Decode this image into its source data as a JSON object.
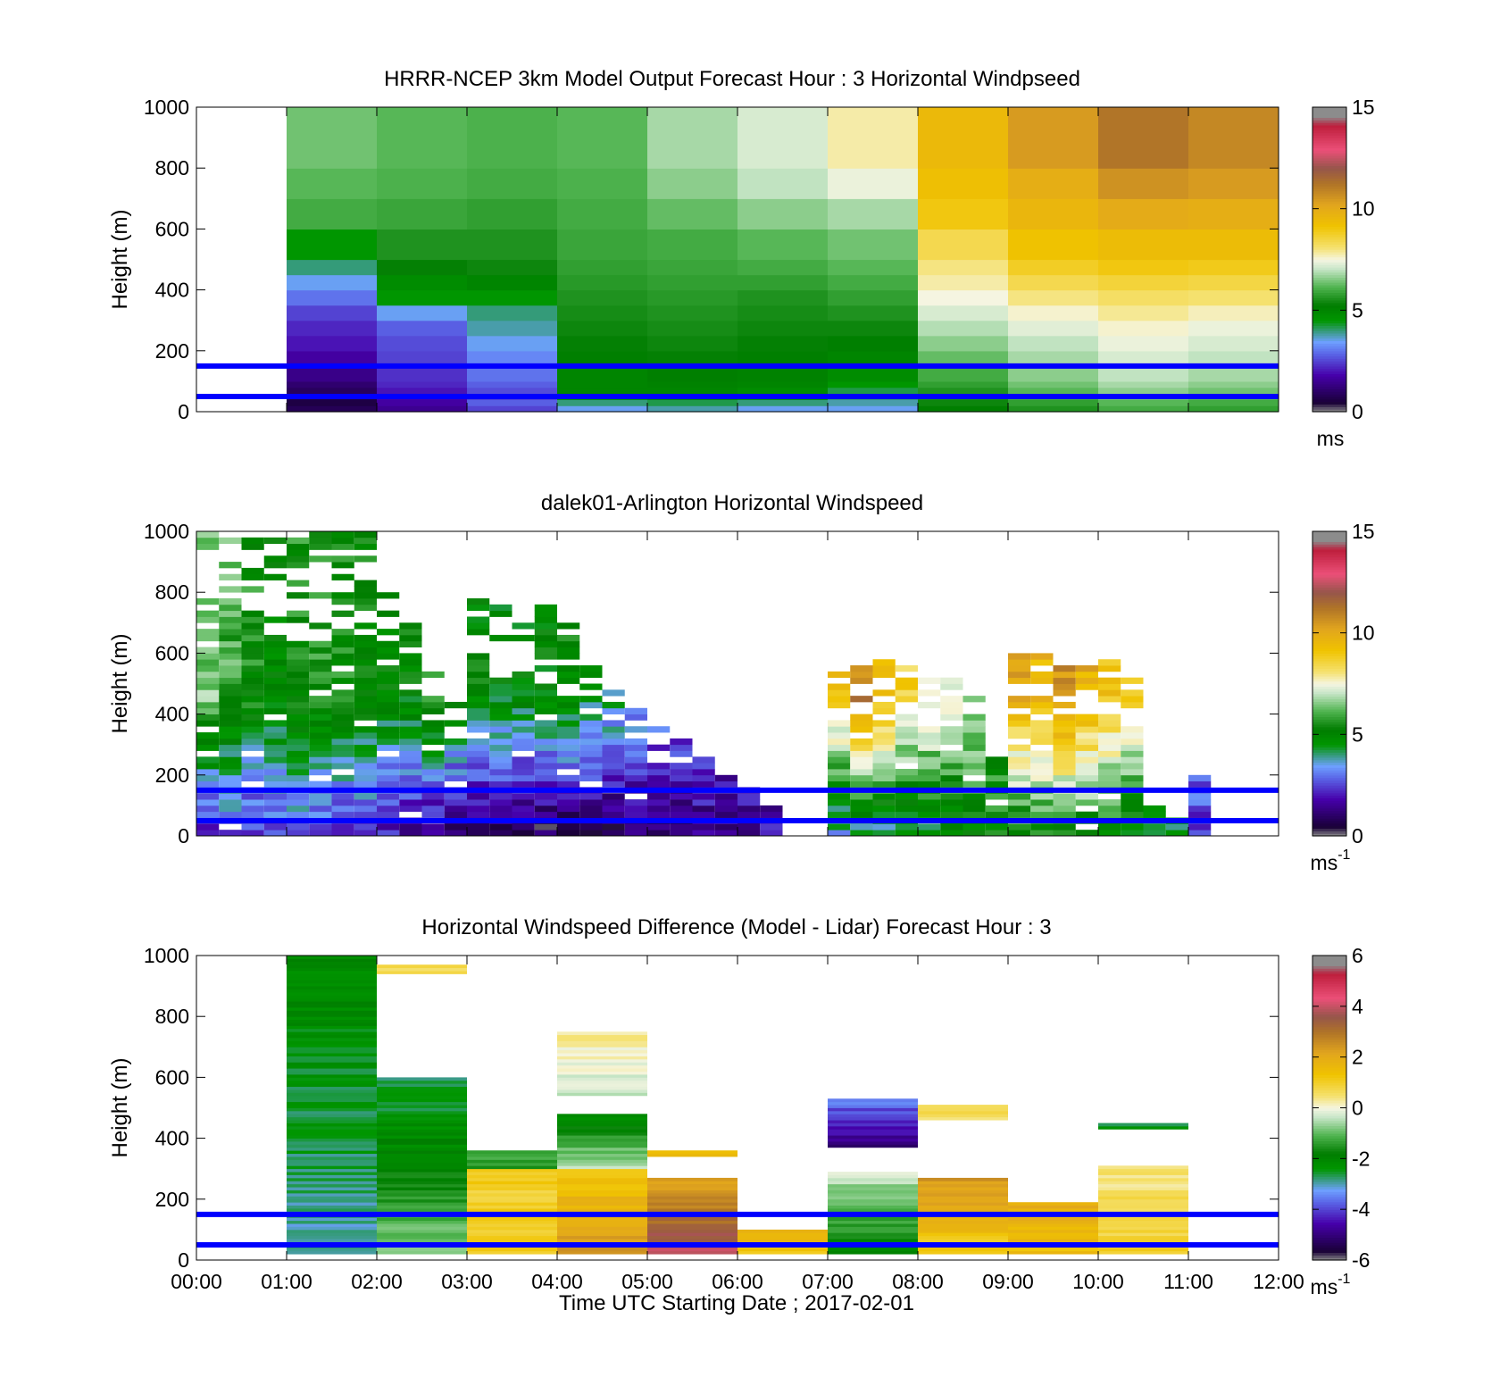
{
  "figure": {
    "xlabel": "Time UTC  Starting Date ; 2017-02-01",
    "x_tick_labels": [
      "00:00",
      "01:00",
      "02:00",
      "03:00",
      "04:00",
      "05:00",
      "06:00",
      "07:00",
      "08:00",
      "09:00",
      "10:00",
      "11:00",
      "12:00"
    ],
    "reference_line_color": "#0000ff",
    "reference_line_heights_m": [
      50,
      150
    ]
  },
  "chart_data": [
    {
      "type": "heatmap",
      "title": "HRRR-NCEP 3km Model Output   Forecast Hour : 3 Horizontal Windpseed",
      "ylabel": "Height (m)",
      "ylim": [
        0,
        1000
      ],
      "y_ticks": [
        0,
        200,
        400,
        600,
        800,
        1000
      ],
      "x_hours": [
        0,
        12
      ],
      "colorbar": {
        "range": [
          0,
          15
        ],
        "ticks": [
          0,
          5,
          10,
          15
        ],
        "unit": "ms"
      },
      "levels_m": [
        0,
        20,
        40,
        60,
        80,
        100,
        150,
        200,
        250,
        300,
        350,
        400,
        450,
        500,
        600,
        700,
        800,
        1000
      ],
      "columns": [
        {
          "start": 0,
          "end": 1,
          "values": [
            null,
            null,
            null,
            null,
            null,
            null,
            null,
            null,
            null,
            null,
            null,
            null,
            null,
            null,
            null,
            null,
            null
          ]
        },
        {
          "start": 1,
          "end": 2,
          "values": [
            0.8,
            0.6,
            0.7,
            0.9,
            1.1,
            1.4,
            1.7,
            2.0,
            2.2,
            2.5,
            3.0,
            3.5,
            4.0,
            4.5,
            6.0,
            6.2,
            6.4
          ]
        },
        {
          "start": 2,
          "end": 3,
          "values": [
            1.5,
            1.7,
            1.8,
            2.0,
            2.2,
            2.3,
            2.5,
            2.6,
            2.8,
            3.5,
            4.5,
            4.8,
            5.3,
            5.6,
            5.9,
            6.1,
            6.2
          ]
        },
        {
          "start": 3,
          "end": 4,
          "values": [
            2.5,
            2.8,
            2.5,
            2.6,
            2.8,
            3.0,
            3.2,
            3.5,
            3.8,
            4.0,
            4.5,
            5.0,
            5.4,
            5.6,
            5.8,
            6.0,
            6.1
          ]
        },
        {
          "start": 4,
          "end": 5,
          "values": [
            3.5,
            4.0,
            4.5,
            5.0,
            5.0,
            5.0,
            5.2,
            5.3,
            5.4,
            5.5,
            5.6,
            5.7,
            5.8,
            5.9,
            6.0,
            6.1,
            6.2
          ]
        },
        {
          "start": 5,
          "end": 6,
          "values": [
            3.8,
            4.2,
            5.0,
            5.0,
            5.1,
            5.2,
            5.3,
            5.4,
            5.5,
            5.6,
            5.7,
            5.8,
            5.9,
            6.0,
            6.3,
            6.6,
            6.8
          ]
        },
        {
          "start": 6,
          "end": 7,
          "values": [
            3.5,
            4.0,
            4.5,
            4.8,
            5.0,
            5.1,
            5.2,
            5.3,
            5.4,
            5.5,
            5.6,
            5.8,
            6.0,
            6.2,
            6.6,
            7.0,
            7.2
          ]
        },
        {
          "start": 7,
          "end": 8,
          "values": [
            3.5,
            3.8,
            4.0,
            4.2,
            4.5,
            4.8,
            5.0,
            5.2,
            5.4,
            5.6,
            5.8,
            6.0,
            6.2,
            6.4,
            6.8,
            7.4,
            7.8
          ]
        },
        {
          "start": 8,
          "end": 9,
          "values": [
            5.2,
            5.4,
            5.5,
            5.6,
            5.8,
            6.0,
            6.3,
            6.6,
            6.9,
            7.2,
            7.5,
            7.8,
            8.0,
            8.4,
            9.0,
            9.3,
            9.5
          ]
        },
        {
          "start": 9,
          "end": 10,
          "values": [
            5.6,
            5.8,
            6.0,
            6.2,
            6.4,
            6.6,
            6.8,
            7.0,
            7.3,
            7.6,
            8.0,
            8.4,
            8.8,
            9.2,
            9.6,
            9.9,
            10.4
          ]
        },
        {
          "start": 10,
          "end": 11,
          "values": [
            6.0,
            6.2,
            6.4,
            6.6,
            6.8,
            7.0,
            7.2,
            7.4,
            7.6,
            7.9,
            8.2,
            8.6,
            9.0,
            9.4,
            10.0,
            10.6,
            11.2
          ]
        },
        {
          "start": 11,
          "end": 12,
          "values": [
            5.8,
            6.0,
            6.2,
            6.4,
            6.6,
            6.8,
            7.0,
            7.2,
            7.4,
            7.7,
            8.1,
            8.5,
            8.9,
            9.4,
            9.9,
            10.4,
            10.8
          ]
        }
      ]
    },
    {
      "type": "heatmap",
      "title": "dalek01-Arlington  Horizontal Windspeed",
      "ylabel": "Height (m)",
      "ylim": [
        0,
        1000
      ],
      "y_ticks": [
        0,
        200,
        400,
        600,
        800,
        1000
      ],
      "x_hours": [
        0,
        12
      ],
      "colorbar": {
        "range": [
          0,
          15
        ],
        "ticks": [
          0,
          5,
          10,
          15
        ],
        "unit": "ms",
        "unit_exponent": "-1"
      },
      "column_width_h": 0.25,
      "level_step_m": 20,
      "profiles": [
        {
          "t": 0.0,
          "top": 1000,
          "low": 2.0,
          "high": 6.5
        },
        {
          "t": 0.25,
          "top": 1000,
          "low": 2.5,
          "high": 6.0
        },
        {
          "t": 0.5,
          "top": 1000,
          "low": 2.2,
          "high": 5.5
        },
        {
          "t": 0.75,
          "top": 1000,
          "low": 2.5,
          "high": 5.2
        },
        {
          "t": 1.0,
          "top": 1000,
          "low": 2.8,
          "high": 5.5
        },
        {
          "t": 1.25,
          "top": 1000,
          "low": 2.6,
          "high": 5.6
        },
        {
          "t": 1.5,
          "top": 1000,
          "low": 2.4,
          "high": 5.4
        },
        {
          "t": 1.75,
          "top": 1000,
          "low": 2.3,
          "high": 5.3
        },
        {
          "t": 2.0,
          "top": 800,
          "low": 2.0,
          "high": 5.0
        },
        {
          "t": 2.25,
          "top": 720,
          "low": 1.6,
          "high": 5.0
        },
        {
          "t": 2.5,
          "top": 530,
          "low": 1.3,
          "high": 6.0
        },
        {
          "t": 2.75,
          "top": 460,
          "low": 1.2,
          "high": 5.2
        },
        {
          "t": 3.0,
          "top": 780,
          "low": 1.0,
          "high": 5.0
        },
        {
          "t": 3.25,
          "top": 790,
          "low": 0.9,
          "high": 4.8
        },
        {
          "t": 3.5,
          "top": 740,
          "low": 0.8,
          "high": 4.9
        },
        {
          "t": 3.75,
          "top": 750,
          "low": 0.7,
          "high": 5.0
        },
        {
          "t": 4.0,
          "top": 700,
          "low": 0.6,
          "high": 5.1
        },
        {
          "t": 4.25,
          "top": 600,
          "low": 0.7,
          "high": 4.6
        },
        {
          "t": 4.5,
          "top": 480,
          "low": 0.8,
          "high": 4.3
        },
        {
          "t": 4.75,
          "top": 420,
          "low": 0.9,
          "high": 4.0
        },
        {
          "t": 5.0,
          "top": 350,
          "low": 1.0,
          "high": 3.5
        },
        {
          "t": 5.25,
          "top": 320,
          "low": 1.2,
          "high": 3.2
        },
        {
          "t": 5.5,
          "top": 250,
          "low": 1.4,
          "high": 3.0
        },
        {
          "t": 5.75,
          "top": 200,
          "low": 1.5,
          "high": 2.5
        },
        {
          "t": 6.0,
          "top": 170,
          "low": 1.6,
          "high": 2.2
        },
        {
          "t": 6.25,
          "top": 100,
          "low": 1.8,
          "high": 2.0
        },
        {
          "t": 7.0,
          "top": 580,
          "low": 3.5,
          "high": 9.0
        },
        {
          "t": 7.25,
          "top": 560,
          "low": 3.8,
          "high": 11.0
        },
        {
          "t": 7.5,
          "top": 580,
          "low": 4.0,
          "high": 9.5
        },
        {
          "t": 7.75,
          "top": 560,
          "low": 4.2,
          "high": 8.5
        },
        {
          "t": 8.0,
          "top": 540,
          "low": 4.5,
          "high": 8.0
        },
        {
          "t": 8.25,
          "top": 520,
          "low": 4.8,
          "high": 7.5
        },
        {
          "t": 8.5,
          "top": 500,
          "low": 5.0,
          "high": 7.2
        },
        {
          "t": 8.75,
          "top": 250,
          "low": 5.2,
          "high": 6.2
        },
        {
          "t": 9.0,
          "top": 600,
          "low": 5.0,
          "high": 10.0
        },
        {
          "t": 9.25,
          "top": 620,
          "low": 5.2,
          "high": 9.5
        },
        {
          "t": 9.5,
          "top": 580,
          "low": 5.4,
          "high": 10.5
        },
        {
          "t": 9.75,
          "top": 560,
          "low": 5.2,
          "high": 9.8
        },
        {
          "t": 10.0,
          "top": 600,
          "low": 5.0,
          "high": 9.0
        },
        {
          "t": 10.25,
          "top": 520,
          "low": 4.6,
          "high": 8.6
        },
        {
          "t": 10.5,
          "top": 100,
          "low": 4.2,
          "high": 5.0
        },
        {
          "t": 10.75,
          "top": 60,
          "low": 4.5,
          "high": 5.0
        },
        {
          "t": 11.0,
          "top": 200,
          "low": 2.5,
          "high": 3.5
        }
      ]
    },
    {
      "type": "heatmap",
      "title": "Horizontal Windspeed Difference (Model - Lidar) Forecast Hour : 3",
      "ylabel": "Height (m)",
      "ylim": [
        0,
        1000
      ],
      "y_ticks": [
        0,
        200,
        400,
        600,
        800,
        1000
      ],
      "x_hours": [
        0,
        12
      ],
      "colorbar": {
        "range": [
          -6,
          6
        ],
        "ticks": [
          -6,
          -4,
          -2,
          0,
          2,
          4,
          6
        ],
        "unit": "ms",
        "unit_exponent": "-1"
      },
      "segments": [
        {
          "t0": 1,
          "t1": 2,
          "z0": 20,
          "z1": 1000,
          "v0": -3.0,
          "v1": -2.0
        },
        {
          "t0": 2,
          "t1": 3,
          "z0": 20,
          "z1": 600,
          "v0": -0.8,
          "v1": -2.8
        },
        {
          "t0": 2,
          "t1": 3,
          "z0": 940,
          "z1": 970,
          "v0": 0.8,
          "v1": 0.8
        },
        {
          "t0": 3,
          "t1": 4,
          "z0": 20,
          "z1": 300,
          "v0": 1.0,
          "v1": 1.0
        },
        {
          "t0": 3,
          "t1": 4,
          "z0": 300,
          "z1": 360,
          "v0": -1.5,
          "v1": -1.0
        },
        {
          "t0": 4,
          "t1": 5,
          "z0": 20,
          "z1": 300,
          "v0": 2.5,
          "v1": 1.2
        },
        {
          "t0": 4,
          "t1": 5,
          "z0": 300,
          "z1": 480,
          "v0": -0.5,
          "v1": -2.2
        },
        {
          "t0": 4,
          "t1": 5,
          "z0": 540,
          "z1": 750,
          "v0": -0.4,
          "v1": 0.4
        },
        {
          "t0": 5,
          "t1": 6,
          "z0": 20,
          "z1": 270,
          "v0": 4.0,
          "v1": 2.0
        },
        {
          "t0": 5,
          "t1": 6,
          "z0": 340,
          "z1": 360,
          "v0": 1.5,
          "v1": 1.5
        },
        {
          "t0": 6,
          "t1": 7,
          "z0": 20,
          "z1": 100,
          "v0": 1.2,
          "v1": 1.8
        },
        {
          "t0": 7,
          "t1": 8,
          "z0": 20,
          "z1": 290,
          "v0": -2.0,
          "v1": -0.3
        },
        {
          "t0": 7,
          "t1": 8,
          "z0": 370,
          "z1": 530,
          "v0": -5.0,
          "v1": -3.5
        },
        {
          "t0": 8,
          "t1": 9,
          "z0": 20,
          "z1": 270,
          "v0": 1.0,
          "v1": 2.5
        },
        {
          "t0": 8,
          "t1": 9,
          "z0": 460,
          "z1": 510,
          "v0": 0.6,
          "v1": 0.6
        },
        {
          "t0": 9,
          "t1": 10,
          "z0": 20,
          "z1": 190,
          "v0": 1.5,
          "v1": 2.0
        },
        {
          "t0": 10,
          "t1": 11,
          "z0": 20,
          "z1": 310,
          "v0": 1.0,
          "v1": 0.3
        },
        {
          "t0": 10,
          "t1": 11,
          "z0": 430,
          "z1": 450,
          "v0": -2.5,
          "v1": -2.5
        }
      ]
    }
  ]
}
